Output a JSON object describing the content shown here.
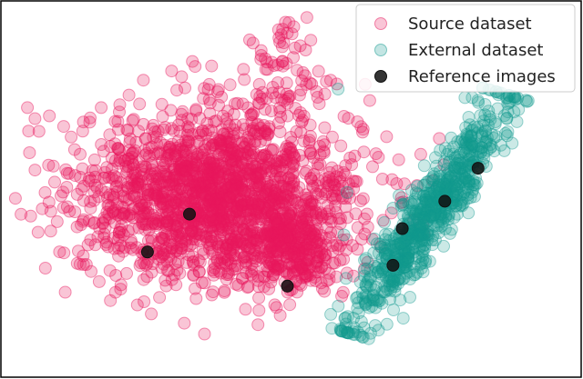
{
  "chart_data": {
    "type": "scatter",
    "title": "",
    "xlabel": "",
    "ylabel": "",
    "xlim": [
      0,
      100
    ],
    "ylim": [
      0,
      100
    ],
    "grid": false,
    "axes_visible": false,
    "legend_position": "top-right",
    "series": [
      {
        "name": "Source dataset",
        "color": "#e8175d",
        "opacity": 0.25,
        "kind": "cluster",
        "clusters": [
          {
            "center": [
              37.5,
              48
            ],
            "spread": [
              12,
              11
            ],
            "count": 1900
          },
          {
            "center": [
              50,
              33
            ],
            "spread": [
              4,
              5
            ],
            "count": 250
          },
          {
            "center": [
              47,
              76
            ],
            "spread": [
              7,
              4
            ],
            "count": 55
          },
          {
            "center": [
              49,
              89
            ],
            "spread": [
              2.5,
              4
            ],
            "count": 25
          }
        ],
        "points": [
          [
            4.7,
            71.6
          ],
          [
            6,
            68.7
          ],
          [
            33,
            83.8
          ],
          [
            36.3,
            82.6
          ],
          [
            59,
            69.3
          ],
          [
            62.3,
            65.9
          ]
        ]
      },
      {
        "name": "External dataset",
        "color": "#11998e",
        "opacity": 0.22,
        "kind": "band",
        "band": {
          "start": [
            61,
            15
          ],
          "end": [
            86,
            72
          ],
          "width": 2.4,
          "count": 750
        },
        "points": [
          [
            58,
            76.5
          ],
          [
            59.5,
            49.2
          ],
          [
            59,
            38
          ],
          [
            87,
            74.3
          ]
        ]
      },
      {
        "name": "Reference images",
        "color": "#111111",
        "opacity": 0.85,
        "kind": "points",
        "points": [
          [
            32.5,
            43.5
          ],
          [
            25.3,
            33.5
          ],
          [
            49.3,
            24.5
          ],
          [
            69,
            39.7
          ],
          [
            76.3,
            46.9
          ],
          [
            82,
            55.6
          ],
          [
            67.4,
            30
          ]
        ]
      }
    ]
  }
}
